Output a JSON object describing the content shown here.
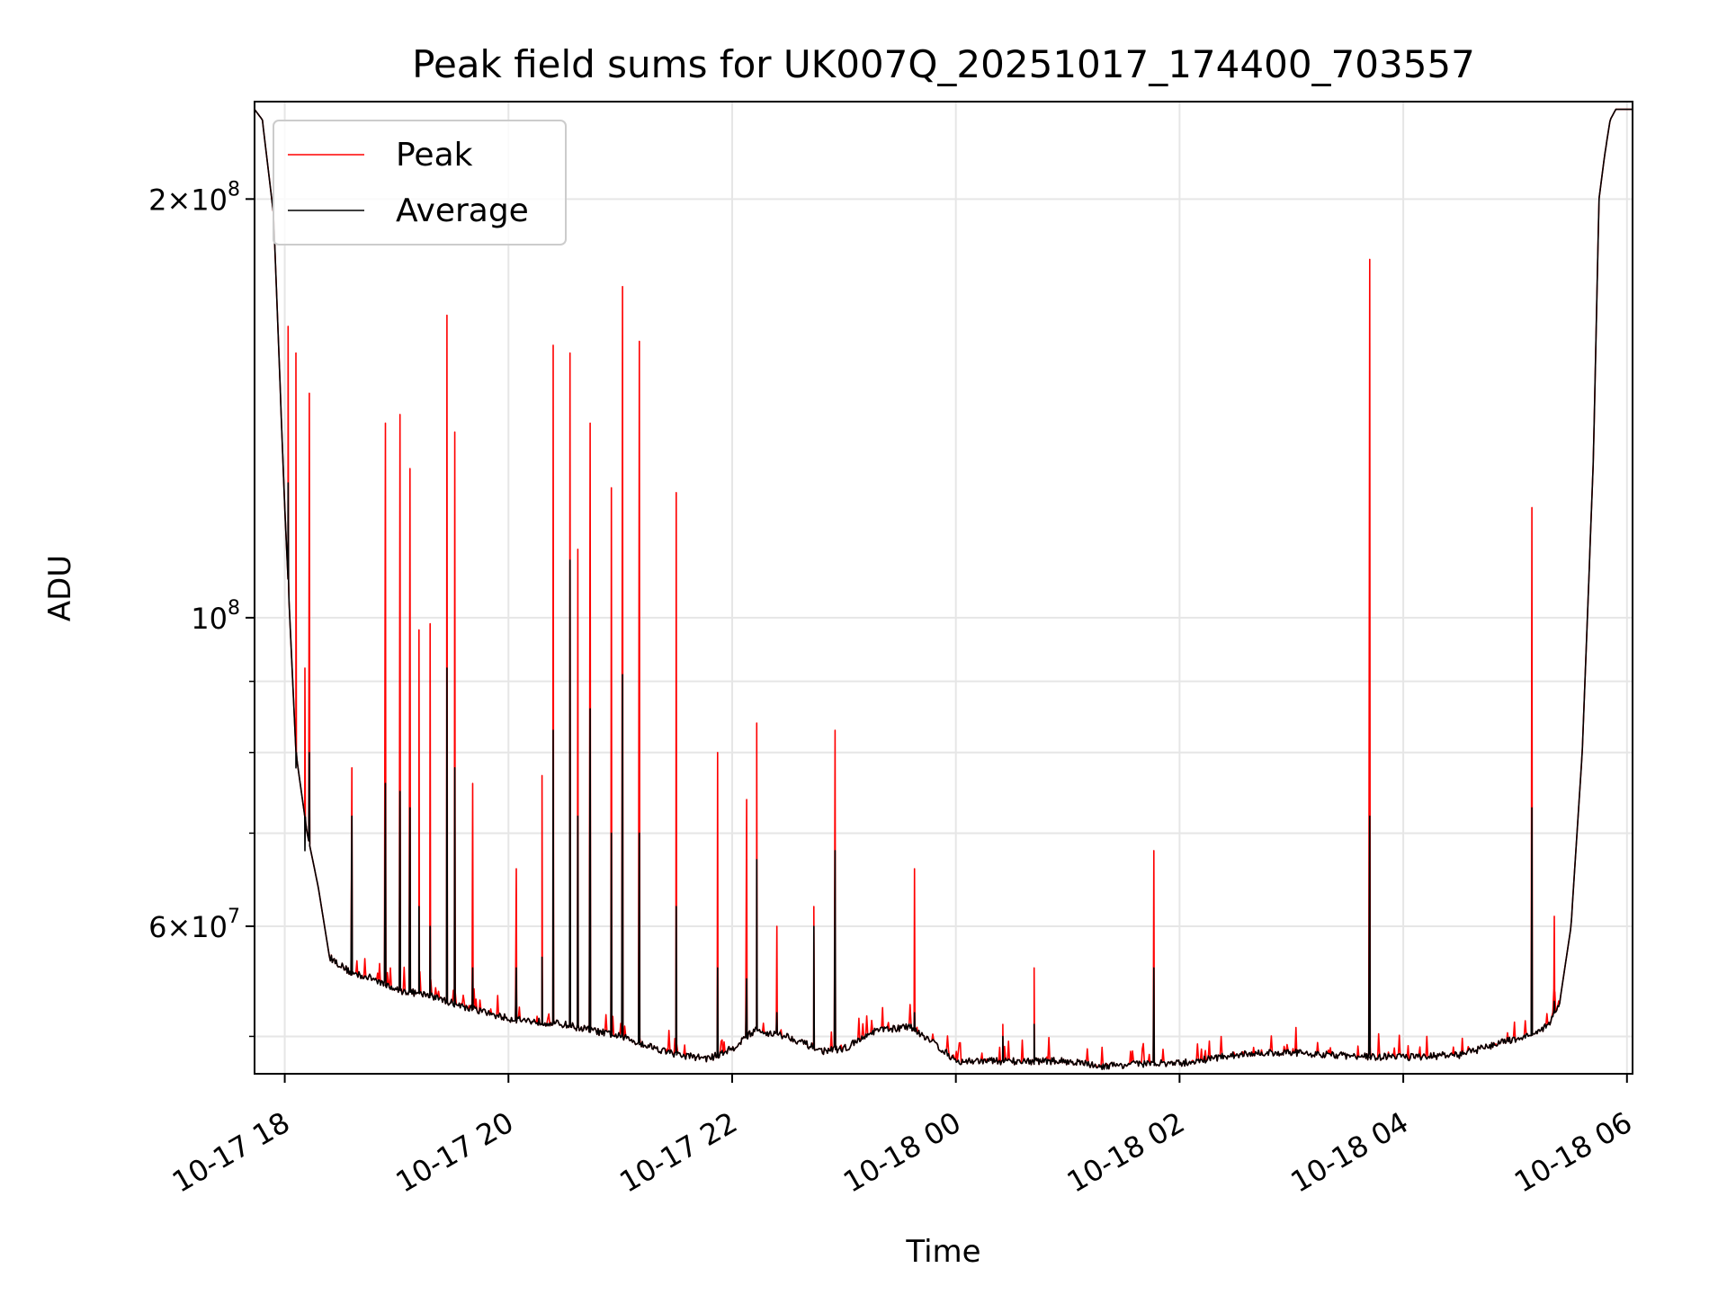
{
  "chart_data": {
    "type": "line",
    "title": "Peak field sums for UK007Q_20251017_174400_703557",
    "xlabel": "Time",
    "ylabel": "ADU",
    "yscale": "log",
    "ylim": [
      47000000,
      235000000
    ],
    "xlim_hours": [
      17.73,
      30.05
    ],
    "grid": true,
    "legend_position": "upper-left",
    "x_tick_labels": [
      {
        "hour": 18,
        "label": "10-17 18"
      },
      {
        "hour": 20,
        "label": "10-17 20"
      },
      {
        "hour": 22,
        "label": "10-17 22"
      },
      {
        "hour": 24,
        "label": "10-18 00"
      },
      {
        "hour": 26,
        "label": "10-18 02"
      },
      {
        "hour": 28,
        "label": "10-18 04"
      },
      {
        "hour": 30,
        "label": "10-18 06"
      }
    ],
    "y_major_ticks": [
      {
        "value": 60000000,
        "mantissa": "6",
        "exp": "7"
      },
      {
        "value": 100000000,
        "mantissa": "",
        "exp": "8"
      },
      {
        "value": 200000000,
        "mantissa": "2",
        "exp": "8"
      }
    ],
    "y_minor_ticks": [
      50000000,
      70000000,
      80000000,
      90000000
    ],
    "series": [
      {
        "name": "Peak",
        "color": "#ff0000"
      },
      {
        "name": "Average",
        "color": "#000000"
      }
    ],
    "baseline_points": [
      [
        17.73,
        232000000
      ],
      [
        17.8,
        228000000
      ],
      [
        17.9,
        195000000
      ],
      [
        18.0,
        120000000
      ],
      [
        18.1,
        80000000
      ],
      [
        18.2,
        70000000
      ],
      [
        18.3,
        64000000
      ],
      [
        18.4,
        57000000
      ],
      [
        18.6,
        55500000
      ],
      [
        18.8,
        55000000
      ],
      [
        19.0,
        54000000
      ],
      [
        19.3,
        53500000
      ],
      [
        19.6,
        52500000
      ],
      [
        20.0,
        51500000
      ],
      [
        20.5,
        51000000
      ],
      [
        21.0,
        50000000
      ],
      [
        21.5,
        48500000
      ],
      [
        21.8,
        48200000
      ],
      [
        22.0,
        49000000
      ],
      [
        22.2,
        50500000
      ],
      [
        22.5,
        50000000
      ],
      [
        22.8,
        48800000
      ],
      [
        23.0,
        49000000
      ],
      [
        23.3,
        50500000
      ],
      [
        23.6,
        50800000
      ],
      [
        23.8,
        49500000
      ],
      [
        24.0,
        48000000
      ],
      [
        24.5,
        48000000
      ],
      [
        25.0,
        48000000
      ],
      [
        25.3,
        47600000
      ],
      [
        25.7,
        47800000
      ],
      [
        26.0,
        47800000
      ],
      [
        26.5,
        48500000
      ],
      [
        27.0,
        48700000
      ],
      [
        27.5,
        48400000
      ],
      [
        28.0,
        48300000
      ],
      [
        28.5,
        48500000
      ],
      [
        29.0,
        49800000
      ],
      [
        29.2,
        50200000
      ],
      [
        29.3,
        51000000
      ],
      [
        29.4,
        53000000
      ],
      [
        29.5,
        60000000
      ],
      [
        29.6,
        80000000
      ],
      [
        29.7,
        130000000
      ],
      [
        29.75,
        200000000
      ],
      [
        29.8,
        215000000
      ],
      [
        29.85,
        228000000
      ],
      [
        29.9,
        232000000
      ],
      [
        30.05,
        232000000
      ]
    ],
    "spikes": [
      [
        18.03,
        162000000,
        125000000
      ],
      [
        18.1,
        155000000,
        78000000
      ],
      [
        18.18,
        92000000,
        68000000
      ],
      [
        18.22,
        145000000,
        80000000
      ],
      [
        18.6,
        78000000,
        72000000
      ],
      [
        18.9,
        138000000,
        76000000
      ],
      [
        19.03,
        140000000,
        75000000
      ],
      [
        19.12,
        128000000,
        73000000
      ],
      [
        19.2,
        98000000,
        62000000
      ],
      [
        19.3,
        99000000,
        60000000
      ],
      [
        19.45,
        165000000,
        92000000
      ],
      [
        19.52,
        136000000,
        78000000
      ],
      [
        19.68,
        76000000,
        56000000
      ],
      [
        20.07,
        66000000,
        56000000
      ],
      [
        20.3,
        77000000,
        57000000
      ],
      [
        20.4,
        157000000,
        83000000
      ],
      [
        20.55,
        155000000,
        110000000
      ],
      [
        20.62,
        112000000,
        72000000
      ],
      [
        20.73,
        138000000,
        86000000
      ],
      [
        20.92,
        124000000,
        70000000
      ],
      [
        21.02,
        173000000,
        91000000
      ],
      [
        21.17,
        158000000,
        70000000
      ],
      [
        21.5,
        123000000,
        62000000
      ],
      [
        21.87,
        80000000,
        56000000
      ],
      [
        22.13,
        74000000,
        55000000
      ],
      [
        22.22,
        84000000,
        67000000
      ],
      [
        22.4,
        60000000,
        52000000
      ],
      [
        22.73,
        62000000,
        60000000
      ],
      [
        22.92,
        83000000,
        68000000
      ],
      [
        23.63,
        66000000,
        52000000
      ],
      [
        24.42,
        51000000,
        50000000
      ],
      [
        24.7,
        56000000,
        51000000
      ],
      [
        25.77,
        68000000,
        56000000
      ],
      [
        27.7,
        181000000,
        72000000
      ],
      [
        29.15,
        120000000,
        73000000
      ],
      [
        29.35,
        61000000,
        53000000
      ]
    ]
  },
  "legend": {
    "peak_label": "Peak",
    "average_label": "Average"
  }
}
